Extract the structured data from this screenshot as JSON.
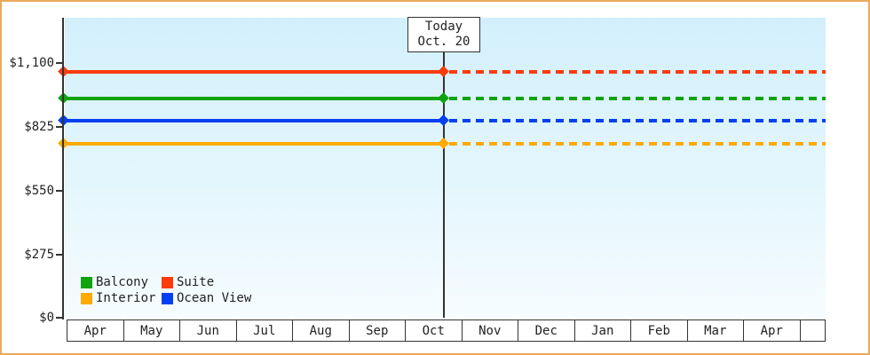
{
  "chart": {
    "frame_color": "#eba95c",
    "axis_color": "#333333",
    "plot_bg_top": "#d2f0fc",
    "plot_bg_bottom": "#f6fcff",
    "text_color": "#222222"
  },
  "chart_data": {
    "type": "line",
    "title": "",
    "x_categories": [
      "Apr",
      "May",
      "Jun",
      "Jul",
      "Aug",
      "Sep",
      "Oct",
      "Nov",
      "Dec",
      "Jan",
      "Feb",
      "Mar",
      "Apr"
    ],
    "y_tick_labels_top_to_bottom": [
      "$1,100",
      "$825",
      "$550",
      "$275",
      "$0"
    ],
    "y_tick_values": [
      1100,
      825,
      550,
      275,
      0
    ],
    "y_max_tick": 1100,
    "ylim": [
      0,
      1300
    ],
    "grid": false,
    "legend_position": "bottom-left inside plot",
    "series": [
      {
        "name": "Balcony",
        "color": "#10a310",
        "value": 945,
        "pattern": "solid before today, dashed after"
      },
      {
        "name": "Suite",
        "color": "#fb3b0c",
        "value": 1060,
        "pattern": "solid before today, dashed after"
      },
      {
        "name": "Interior",
        "color": "#ffaa00",
        "value": 750,
        "pattern": "solid before today, dashed after"
      },
      {
        "name": "Ocean View",
        "color": "#0540f0",
        "value": 850,
        "pattern": "solid before today, dashed after"
      }
    ],
    "today_annotation": {
      "title": "Today",
      "date": "Oct. 20",
      "x_category": "Oct"
    },
    "notes": "Constant price lines with diamond markers at axis start and at the today line; dashed projection continues to right edge"
  }
}
